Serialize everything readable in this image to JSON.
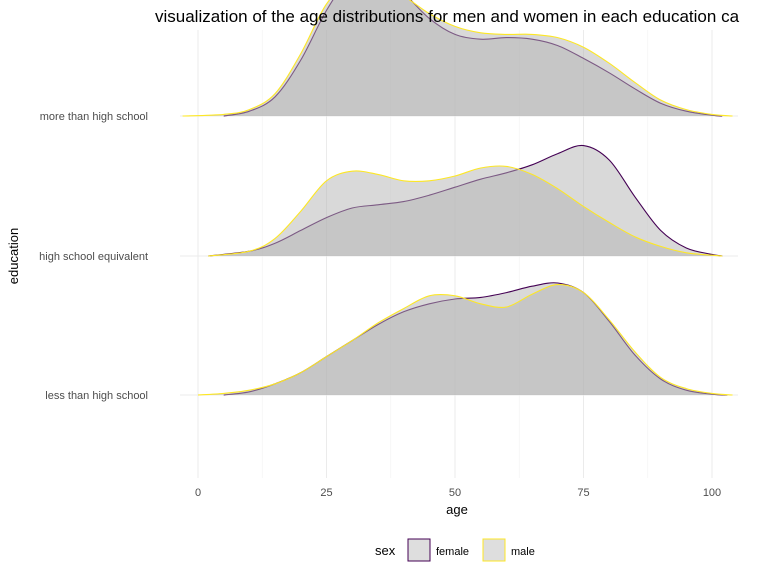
{
  "chart_data": {
    "type": "area",
    "title": "visualization of the age distributions for men and women in each education ca",
    "xlabel": "age",
    "ylabel": "education",
    "xlim": [
      -4,
      104
    ],
    "x_ticks": [
      0,
      25,
      50,
      75,
      100
    ],
    "x_tick_labels": [
      "0",
      "25",
      "50",
      "75",
      "100"
    ],
    "categories": [
      "less than high school",
      "high school equivalent",
      "more than high school"
    ],
    "grid": true,
    "legend": {
      "title": "sex",
      "placement": "bottom",
      "entries": [
        "female",
        "male"
      ]
    },
    "colors": {
      "female": "#440154",
      "male": "#FDE725",
      "fill": "#b4b4b4",
      "grid": "#ebebeb"
    },
    "series": [
      {
        "name": "female",
        "densities": [
          {
            "category": "less than high school",
            "x": [
              5,
              10,
              15,
              20,
              25,
              30,
              35,
              40,
              45,
              50,
              55,
              60,
              65,
              70,
              75,
              80,
              85,
              90,
              95,
              100,
              103
            ],
            "density": [
              0.0,
              0.02,
              0.07,
              0.14,
              0.24,
              0.34,
              0.44,
              0.52,
              0.57,
              0.6,
              0.61,
              0.64,
              0.68,
              0.7,
              0.64,
              0.46,
              0.25,
              0.1,
              0.03,
              0.005,
              0.0
            ]
          },
          {
            "category": "high school equivalent",
            "x": [
              2,
              10,
              15,
              20,
              25,
              30,
              35,
              40,
              45,
              50,
              55,
              60,
              65,
              70,
              75,
              80,
              85,
              90,
              95,
              100,
              102
            ],
            "density": [
              0.0,
              0.03,
              0.08,
              0.16,
              0.24,
              0.3,
              0.32,
              0.34,
              0.38,
              0.43,
              0.48,
              0.52,
              0.57,
              0.64,
              0.69,
              0.6,
              0.37,
              0.16,
              0.05,
              0.01,
              0.0
            ]
          },
          {
            "category": "more than high school",
            "x": [
              5,
              10,
              15,
              20,
              25,
              30,
              33,
              35,
              40,
              45,
              50,
              55,
              60,
              65,
              70,
              75,
              80,
              85,
              90,
              95,
              100,
              102
            ],
            "density": [
              0.0,
              0.03,
              0.12,
              0.35,
              0.66,
              0.89,
              0.93,
              0.91,
              0.77,
              0.61,
              0.51,
              0.48,
              0.49,
              0.48,
              0.44,
              0.36,
              0.27,
              0.17,
              0.08,
              0.03,
              0.005,
              0.0
            ]
          }
        ]
      },
      {
        "name": "male",
        "densities": [
          {
            "category": "less than high school",
            "x": [
              0,
              5,
              10,
              15,
              20,
              25,
              30,
              35,
              40,
              45,
              50,
              55,
              60,
              65,
              70,
              75,
              80,
              85,
              90,
              95,
              100,
              104
            ],
            "density": [
              0.0,
              0.01,
              0.03,
              0.07,
              0.14,
              0.24,
              0.34,
              0.45,
              0.54,
              0.62,
              0.62,
              0.57,
              0.55,
              0.63,
              0.69,
              0.64,
              0.47,
              0.27,
              0.11,
              0.04,
              0.01,
              0.0
            ]
          },
          {
            "category": "high school equivalent",
            "x": [
              2,
              10,
              15,
              20,
              25,
              30,
              35,
              40,
              45,
              50,
              55,
              60,
              65,
              70,
              75,
              80,
              85,
              90,
              95,
              100,
              102
            ],
            "density": [
              0.0,
              0.03,
              0.11,
              0.28,
              0.47,
              0.53,
              0.51,
              0.47,
              0.47,
              0.5,
              0.55,
              0.56,
              0.51,
              0.42,
              0.31,
              0.21,
              0.12,
              0.06,
              0.02,
              0.005,
              0.0
            ]
          },
          {
            "category": "more than high school",
            "x": [
              -3,
              5,
              10,
              15,
              20,
              25,
              30,
              35,
              40,
              45,
              50,
              55,
              60,
              65,
              70,
              75,
              80,
              85,
              90,
              95,
              100,
              104
            ],
            "density": [
              0.0,
              0.01,
              0.04,
              0.14,
              0.39,
              0.7,
              0.85,
              0.83,
              0.75,
              0.64,
              0.56,
              0.52,
              0.51,
              0.51,
              0.49,
              0.43,
              0.33,
              0.21,
              0.1,
              0.04,
              0.01,
              0.0
            ]
          }
        ]
      }
    ]
  }
}
